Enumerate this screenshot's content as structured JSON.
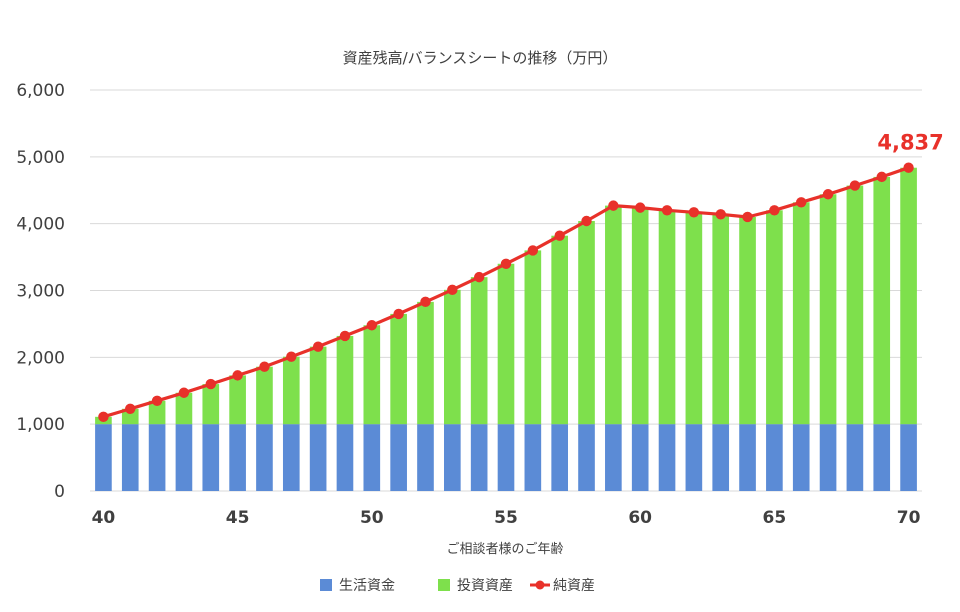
{
  "chart_data": {
    "type": "bar+line",
    "title": "資産残高/バランスシートの推移（万円）",
    "xlabel": "ご相談者様のご年齢",
    "ylabel": "",
    "ylim": [
      0,
      6000
    ],
    "yticks": [
      "0",
      "1,000",
      "2,000",
      "3,000",
      "4,000",
      "5,000",
      "6,000"
    ],
    "xticks": [
      "40",
      "45",
      "50",
      "55",
      "60",
      "65",
      "70"
    ],
    "grid": true,
    "legend_position": "bottom",
    "categories": [
      40,
      41,
      42,
      43,
      44,
      45,
      46,
      47,
      48,
      49,
      50,
      51,
      52,
      53,
      54,
      55,
      56,
      57,
      58,
      59,
      60,
      61,
      62,
      63,
      64,
      65,
      66,
      67,
      68,
      69,
      70
    ],
    "series": [
      {
        "name": "生活資金",
        "kind": "bar-stacked",
        "color": "#5b8bd6",
        "values": [
          1000,
          1000,
          1000,
          1000,
          1000,
          1000,
          1000,
          1000,
          1000,
          1000,
          1000,
          1000,
          1000,
          1000,
          1000,
          1000,
          1000,
          1000,
          1000,
          1000,
          1000,
          1000,
          1000,
          1000,
          1000,
          1000,
          1000,
          1000,
          1000,
          1000,
          1000
        ]
      },
      {
        "name": "投資資産",
        "kind": "bar-stacked",
        "color": "#7ee04c",
        "values": [
          110,
          230,
          350,
          470,
          600,
          730,
          860,
          1010,
          1160,
          1320,
          1480,
          1650,
          1830,
          2010,
          2200,
          2400,
          2600,
          2820,
          3040,
          3270,
          3240,
          3200,
          3170,
          3140,
          3100,
          3200,
          3320,
          3440,
          3570,
          3700,
          3837
        ]
      },
      {
        "name": "純資産",
        "kind": "line",
        "color": "#e8312a",
        "values": [
          1110,
          1230,
          1350,
          1470,
          1600,
          1730,
          1860,
          2010,
          2160,
          2320,
          2480,
          2650,
          2830,
          3010,
          3200,
          3400,
          3600,
          3820,
          4040,
          4270,
          4240,
          4200,
          4170,
          4140,
          4100,
          4200,
          4320,
          4440,
          4570,
          4700,
          4837
        ]
      }
    ],
    "annotations": [
      {
        "text": "4,837",
        "x": 70,
        "y": 4837
      }
    ]
  }
}
